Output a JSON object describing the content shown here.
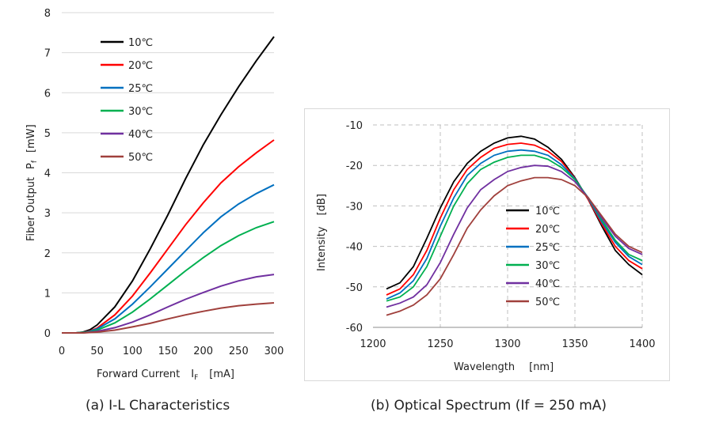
{
  "chart_data": [
    {
      "type": "line",
      "caption": "(a) I-L Characteristics",
      "xlabel_main": "Forward Current",
      "xlabel_sym": "I",
      "xlabel_sub": "F",
      "xlabel_unit": "[mA]",
      "ylabel_main": "Fiber Output",
      "ylabel_sym": "P",
      "ylabel_sub": "f",
      "ylabel_unit": "[mW]",
      "xlim": [
        0,
        300
      ],
      "ylim": [
        0,
        8
      ],
      "xticks": [
        "0",
        "50",
        "100",
        "150",
        "200",
        "250",
        "300"
      ],
      "yticks": [
        "0",
        "1",
        "2",
        "3",
        "4",
        "5",
        "6",
        "7",
        "8"
      ],
      "grid": "horizontal",
      "legend_position": "top-left",
      "x": [
        0,
        20,
        30,
        40,
        50,
        75,
        100,
        125,
        150,
        175,
        200,
        225,
        250,
        275,
        300
      ],
      "series": [
        {
          "name": "10℃",
          "color": "#000000",
          "values": [
            0,
            0,
            0.02,
            0.08,
            0.2,
            0.65,
            1.3,
            2.1,
            2.95,
            3.85,
            4.7,
            5.45,
            6.15,
            6.8,
            7.4
          ]
        },
        {
          "name": "20℃",
          "color": "#ff0000",
          "values": [
            0,
            0,
            0.01,
            0.05,
            0.12,
            0.45,
            0.92,
            1.5,
            2.1,
            2.7,
            3.25,
            3.75,
            4.15,
            4.5,
            4.82
          ]
        },
        {
          "name": "25℃",
          "color": "#0070c0",
          "values": [
            0,
            0,
            0.01,
            0.04,
            0.1,
            0.35,
            0.72,
            1.15,
            1.6,
            2.05,
            2.5,
            2.9,
            3.22,
            3.48,
            3.7
          ]
        },
        {
          "name": "30℃",
          "color": "#00b050",
          "values": [
            0,
            0,
            0.01,
            0.03,
            0.07,
            0.25,
            0.52,
            0.85,
            1.2,
            1.55,
            1.88,
            2.18,
            2.43,
            2.63,
            2.78
          ]
        },
        {
          "name": "40℃",
          "color": "#7030a0",
          "values": [
            0,
            0,
            0,
            0.02,
            0.04,
            0.13,
            0.27,
            0.45,
            0.65,
            0.84,
            1.01,
            1.17,
            1.3,
            1.4,
            1.46
          ]
        },
        {
          "name": "50℃",
          "color": "#a0403c",
          "values": [
            0,
            0,
            0,
            0.01,
            0.02,
            0.07,
            0.15,
            0.24,
            0.35,
            0.45,
            0.54,
            0.62,
            0.68,
            0.72,
            0.75
          ]
        }
      ]
    },
    {
      "type": "line",
      "caption": "(b) Optical Spectrum (If = 250 mA)",
      "xlabel_main": "Wavelength",
      "xlabel_unit": "[nm]",
      "ylabel_main": "Intensity",
      "ylabel_unit": "[dB]",
      "xlim": [
        1200,
        1400
      ],
      "ylim": [
        -60,
        -10
      ],
      "xticks": [
        "1200",
        "1250",
        "1300",
        "1350",
        "1400"
      ],
      "yticks": [
        "-60",
        "-50",
        "-40",
        "-30",
        "-20",
        "-10"
      ],
      "grid": "both-dashed",
      "legend_position": "bottom-right",
      "x": [
        1210,
        1220,
        1230,
        1240,
        1250,
        1260,
        1270,
        1280,
        1290,
        1300,
        1310,
        1320,
        1330,
        1340,
        1350,
        1360,
        1370,
        1380,
        1390,
        1400
      ],
      "series": [
        {
          "name": "10℃",
          "color": "#000000",
          "values": [
            -50.5,
            -49,
            -45,
            -38,
            -30.5,
            -24,
            -19.5,
            -16.5,
            -14.5,
            -13.2,
            -12.8,
            -13.5,
            -15.5,
            -18.5,
            -23,
            -28.5,
            -35,
            -41,
            -44.5,
            -47
          ]
        },
        {
          "name": "20℃",
          "color": "#ff0000",
          "values": [
            -52,
            -50.5,
            -47,
            -41,
            -33,
            -26,
            -21,
            -18,
            -15.8,
            -14.8,
            -14.5,
            -15,
            -16.5,
            -19,
            -23.2,
            -28.5,
            -34.5,
            -40,
            -43.5,
            -45.5
          ]
        },
        {
          "name": "25℃",
          "color": "#0070c0",
          "values": [
            -53,
            -51.5,
            -48.5,
            -43,
            -35,
            -28,
            -22.5,
            -19.5,
            -17.5,
            -16.5,
            -16.2,
            -16.5,
            -17.5,
            -19.8,
            -23.3,
            -28.2,
            -34,
            -39,
            -42.5,
            -44.5
          ]
        },
        {
          "name": "30℃",
          "color": "#00b050",
          "values": [
            -53.5,
            -52.5,
            -50,
            -45,
            -37.5,
            -30,
            -24.5,
            -21,
            -19.2,
            -18,
            -17.5,
            -17.5,
            -18.5,
            -20.5,
            -23.5,
            -28,
            -33.5,
            -38.5,
            -42,
            -43.5
          ]
        },
        {
          "name": "40℃",
          "color": "#7030a0",
          "values": [
            -55,
            -54,
            -52.5,
            -49.5,
            -44,
            -37,
            -30.5,
            -26,
            -23.5,
            -21.5,
            -20.5,
            -20,
            -20.2,
            -21.5,
            -24,
            -28,
            -33,
            -37.5,
            -40.5,
            -42
          ]
        },
        {
          "name": "50℃",
          "color": "#a0403c",
          "values": [
            -57,
            -56,
            -54.5,
            -52,
            -48,
            -42,
            -35.5,
            -31,
            -27.5,
            -25,
            -23.8,
            -23,
            -23,
            -23.5,
            -25,
            -28,
            -32.5,
            -37,
            -40,
            -41.5
          ]
        }
      ]
    }
  ]
}
